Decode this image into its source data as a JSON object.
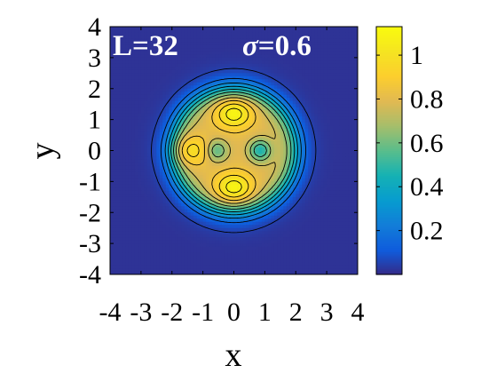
{
  "chart_data": {
    "type": "heatmap",
    "title": "",
    "xlabel": "x",
    "ylabel": "y",
    "xlim": [
      -4,
      4
    ],
    "ylim": [
      -4,
      4
    ],
    "x_ticks": [
      "-4",
      "-3",
      "-2",
      "-1",
      "0",
      "1",
      "2",
      "3",
      "4"
    ],
    "y_ticks": [
      "4",
      "3",
      "2",
      "1",
      "0",
      "-1",
      "-2",
      "-3",
      "-4"
    ],
    "annotations": {
      "size": "L=32",
      "sigma_symbol": "σ",
      "sigma_value": "=0.6"
    },
    "colorbar": {
      "range": [
        0,
        1.13
      ],
      "ticks": [
        "1",
        "0.8",
        "0.6",
        "0.4",
        "0.2"
      ],
      "tick_values": [
        1,
        0.8,
        0.6,
        0.4,
        0.2
      ],
      "colormap": "parula"
    },
    "grid": false,
    "contour_levels": [
      0.05,
      0.15,
      0.25,
      0.35,
      0.45,
      0.55,
      0.65,
      0.75,
      0.85,
      0.95,
      1.05
    ],
    "field_features": {
      "outer_radius": 2.5,
      "background_value": 0.02,
      "peaks": [
        {
          "x": 0,
          "y": 1.2,
          "value": 1.12
        },
        {
          "x": 0,
          "y": -1.2,
          "value": 1.12
        },
        {
          "x": -1.4,
          "y": 0,
          "value": 1.02
        }
      ],
      "dips": [
        {
          "x": -0.55,
          "y": 0,
          "value": 0.55
        },
        {
          "x": 0.85,
          "y": 0,
          "value": 0.45
        }
      ],
      "ridge_value": 0.8
    }
  }
}
